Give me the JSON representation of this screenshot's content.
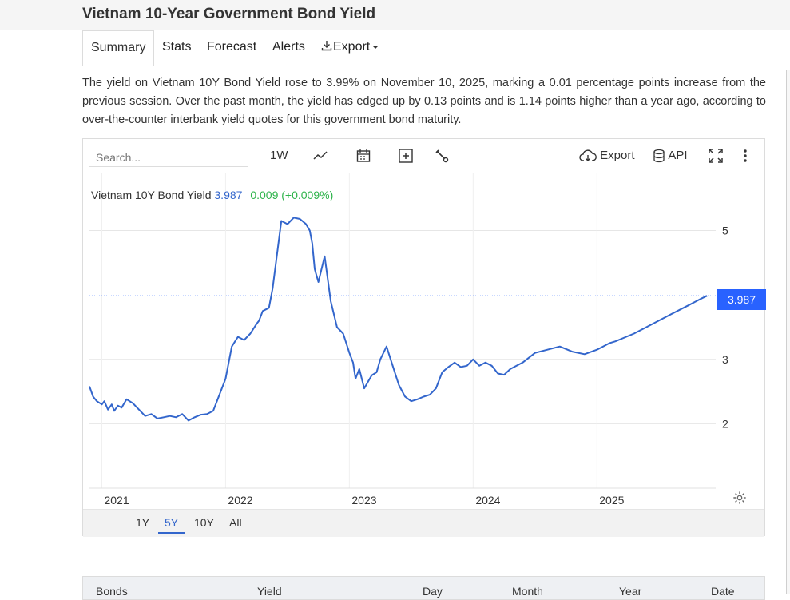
{
  "page": {
    "title": "Vietnam 10-Year Government Bond Yield"
  },
  "tabs": [
    "Summary",
    "Stats",
    "Forecast",
    "Alerts",
    "Export"
  ],
  "summary": "The yield on Vietnam 10Y Bond Yield rose to 3.99% on November 10, 2025, marking a 0.01 percentage points increase from the previous session. Over the past month, the yield has edged up by 0.13 points and is 1.14 points higher than a year ago, according to over-the-counter interbank yield quotes for this government bond maturity.",
  "toolbar": {
    "search_placeholder": "Search...",
    "interval": "1W",
    "export_label": "Export",
    "api_label": "API"
  },
  "legend": {
    "name": "Vietnam 10Y Bond Yield",
    "value": "3.987",
    "change": "0.009 (+0.009%)"
  },
  "last_price_label": "3.987",
  "ranges": [
    "1Y",
    "5Y",
    "10Y",
    "All"
  ],
  "active_range": "5Y",
  "table": {
    "headers": [
      "Bonds",
      "Yield",
      "Day",
      "Month",
      "Year",
      "Date"
    ]
  },
  "colors": {
    "line": "#3366cc",
    "accent": "#2962ff",
    "positive": "#2db34a"
  },
  "chart_data": {
    "type": "line",
    "title": "Vietnam 10Y Bond Yield",
    "x_tick_labels": [
      "2021",
      "2022",
      "2023",
      "2024",
      "2025"
    ],
    "y_tick_labels": [
      "2",
      "3",
      "5"
    ],
    "ylim": [
      1.0,
      5.9
    ],
    "xlim": [
      2020.9,
      2025.96
    ],
    "last_value": 3.987,
    "series": [
      {
        "name": "Vietnam 10Y Bond Yield",
        "x": [
          2020.9,
          2020.93,
          2020.96,
          2021.0,
          2021.02,
          2021.05,
          2021.08,
          2021.1,
          2021.13,
          2021.16,
          2021.2,
          2021.25,
          2021.3,
          2021.35,
          2021.4,
          2021.45,
          2021.5,
          2021.55,
          2021.6,
          2021.65,
          2021.7,
          2021.75,
          2021.8,
          2021.85,
          2021.9,
          2021.95,
          2022.0,
          2022.05,
          2022.1,
          2022.15,
          2022.2,
          2022.25,
          2022.27,
          2022.3,
          2022.35,
          2022.38,
          2022.45,
          2022.5,
          2022.55,
          2022.6,
          2022.65,
          2022.68,
          2022.7,
          2022.72,
          2022.75,
          2022.8,
          2022.85,
          2022.9,
          2022.95,
          2023.0,
          2023.03,
          2023.05,
          2023.08,
          2023.12,
          2023.15,
          2023.18,
          2023.22,
          2023.25,
          2023.3,
          2023.35,
          2023.4,
          2023.45,
          2023.5,
          2023.55,
          2023.6,
          2023.65,
          2023.7,
          2023.75,
          2023.8,
          2023.85,
          2023.9,
          2023.95,
          2024.0,
          2024.05,
          2024.1,
          2024.15,
          2024.2,
          2024.25,
          2024.3,
          2024.4,
          2024.5,
          2024.6,
          2024.7,
          2024.8,
          2024.9,
          2025.0,
          2025.05,
          2025.1,
          2025.15,
          2025.2,
          2025.3,
          2025.4,
          2025.5,
          2025.6,
          2025.7,
          2025.75,
          2025.8,
          2025.85,
          2025.89
        ],
        "values": [
          2.58,
          2.42,
          2.35,
          2.3,
          2.35,
          2.22,
          2.3,
          2.2,
          2.28,
          2.25,
          2.38,
          2.32,
          2.22,
          2.12,
          2.15,
          2.08,
          2.1,
          2.12,
          2.1,
          2.15,
          2.05,
          2.1,
          2.14,
          2.15,
          2.2,
          2.45,
          2.7,
          3.2,
          3.35,
          3.3,
          3.4,
          3.55,
          3.6,
          3.75,
          3.8,
          4.1,
          5.15,
          5.1,
          5.2,
          5.18,
          5.1,
          5.0,
          4.8,
          4.4,
          4.2,
          4.6,
          3.9,
          3.5,
          3.4,
          3.1,
          2.95,
          2.7,
          2.85,
          2.55,
          2.65,
          2.75,
          2.8,
          3.0,
          3.2,
          2.9,
          2.6,
          2.42,
          2.35,
          2.38,
          2.42,
          2.45,
          2.55,
          2.8,
          2.88,
          2.95,
          2.88,
          2.9,
          3.0,
          2.9,
          2.95,
          2.9,
          2.78,
          2.76,
          2.85,
          2.95,
          3.1,
          3.15,
          3.2,
          3.12,
          3.08,
          3.15,
          3.2,
          3.25,
          3.28,
          3.32,
          3.4,
          3.5,
          3.6,
          3.7,
          3.8,
          3.85,
          3.9,
          3.95,
          3.987
        ]
      }
    ]
  }
}
